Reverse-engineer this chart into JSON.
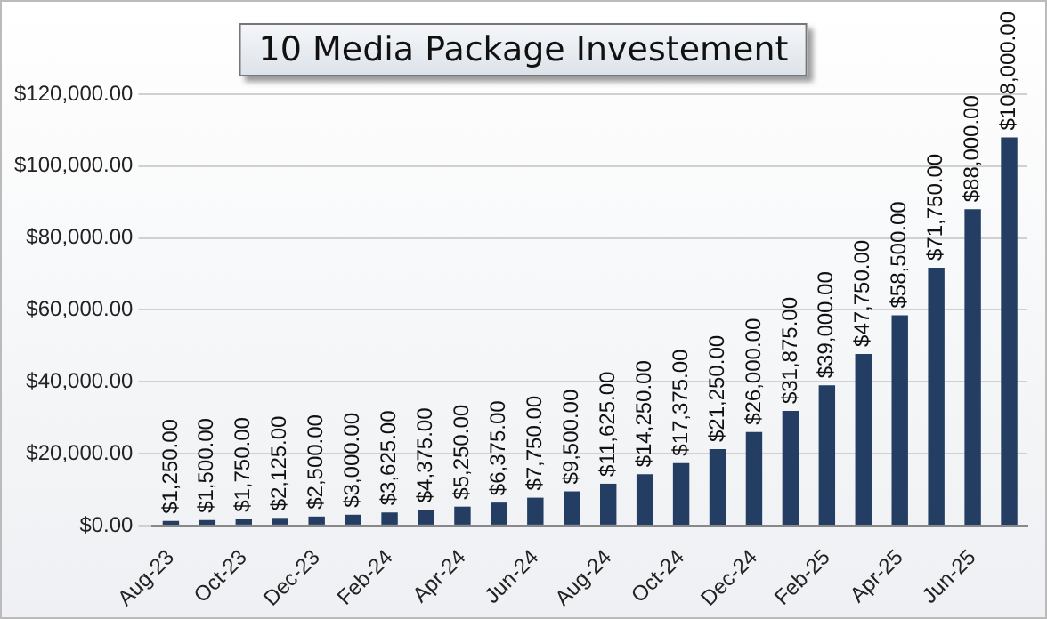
{
  "chart_data": {
    "type": "bar",
    "title": "10 Media Package Investement",
    "categories": [
      "Aug-23",
      null,
      "Oct-23",
      null,
      "Dec-23",
      null,
      "Feb-24",
      null,
      "Apr-24",
      null,
      "Jun-24",
      null,
      "Aug-24",
      null,
      "Oct-24",
      null,
      "Dec-24",
      null,
      "Feb-25",
      null,
      "Apr-25",
      null,
      "Jun-25",
      null
    ],
    "values": [
      1250,
      1500,
      1750,
      2125,
      2500,
      3000,
      3625,
      4375,
      5250,
      6375,
      7750,
      9500,
      11625,
      14250,
      17375,
      21250,
      26000,
      31875,
      39000,
      47750,
      58500,
      71750,
      88000,
      108000
    ],
    "value_labels": [
      "$1,250.00",
      "$1,500.00",
      "$1,750.00",
      "$2,125.00",
      "$2,500.00",
      "$3,000.00",
      "$3,625.00",
      "$4,375.00",
      "$5,250.00",
      "$6,375.00",
      "$7,750.00",
      "$9,500.00",
      "$11,625.00",
      "$14,250.00",
      "$17,375.00",
      "$21,250.00",
      "$26,000.00",
      "$31,875.00",
      "$39,000.00",
      "$47,750.00",
      "$58,500.00",
      "$71,750.00",
      "$88,000.00",
      "$108,000.00"
    ],
    "color": "#233d63",
    "ylim": [
      0,
      120000
    ],
    "yticks": [
      {
        "value": 0,
        "label": "$0.00"
      },
      {
        "value": 20000,
        "label": "$20,000.00"
      },
      {
        "value": 40000,
        "label": "$40,000.00"
      },
      {
        "value": 60000,
        "label": "$60,000.00"
      },
      {
        "value": 80000,
        "label": "$80,000.00"
      },
      {
        "value": 100000,
        "label": "$100,000.00"
      },
      {
        "value": 120000,
        "label": "$120,000.00"
      }
    ],
    "grid": "y",
    "legend": false
  }
}
